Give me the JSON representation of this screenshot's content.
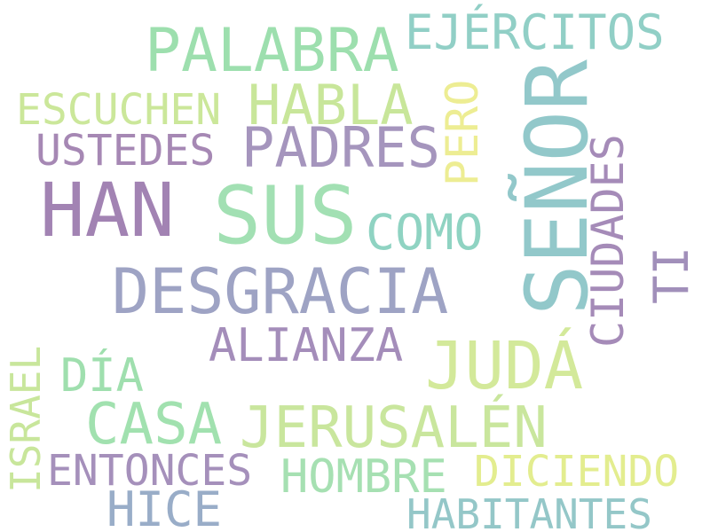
{
  "words": {
    "palabra": {
      "text": "PALABRA",
      "color": "#9ddfae"
    },
    "ejercitos": {
      "text": "EJÉRCITOS",
      "color": "#91cfc6"
    },
    "escuchen": {
      "text": "ESCUCHEN",
      "color": "#cbe79a"
    },
    "habla": {
      "text": "HABLA",
      "color": "#c8e69a"
    },
    "ustedes": {
      "text": "USTEDES",
      "color": "#a688b4"
    },
    "padres": {
      "text": "PADRES",
      "color": "#a595bd"
    },
    "han": {
      "text": "HAN",
      "color": "#a283b3"
    },
    "sus": {
      "text": "SUS",
      "color": "#a2e0b3"
    },
    "como": {
      "text": "COMO",
      "color": "#8fd3c2"
    },
    "desgracia": {
      "text": "DESGRACIA",
      "color": "#9ea3c4"
    },
    "alianza": {
      "text": "ALIANZA",
      "color": "#a48dba"
    },
    "juda": {
      "text": "JUDÁ",
      "color": "#d3e99a"
    },
    "dia": {
      "text": "DÍA",
      "color": "#9fdfae"
    },
    "casa": {
      "text": "CASA",
      "color": "#a1e1af"
    },
    "jerusalen": {
      "text": "JERUSALÉN",
      "color": "#c9e69d"
    },
    "entonces": {
      "text": "ENTONCES",
      "color": "#a590bb"
    },
    "hombre": {
      "text": "HOMBRE",
      "color": "#a6e0b2"
    },
    "diciendo": {
      "text": "DICIENDO",
      "color": "#e3ed8f"
    },
    "hice": {
      "text": "HICE",
      "color": "#99adc8"
    },
    "habitantes": {
      "text": "HABITANTES",
      "color": "#94c7c8"
    },
    "senor": {
      "text": "SEÑOR",
      "color": "#92c8ca"
    },
    "pero": {
      "text": "PERO",
      "color": "#eded93"
    },
    "ciudades": {
      "text": "CIUDADES",
      "color": "#a58bb8"
    },
    "ti": {
      "text": "TI",
      "color": "#a18fba"
    },
    "israel": {
      "text": "ISRAEL",
      "color": "#c8e69b"
    }
  }
}
